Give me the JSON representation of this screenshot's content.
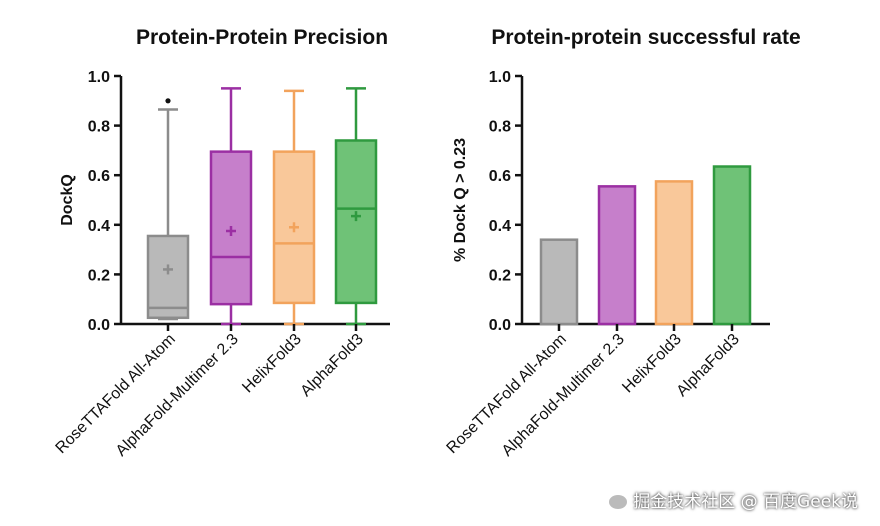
{
  "chart_data": [
    {
      "type": "box",
      "title": "Protein-Protein Precision",
      "ylabel": "DockQ",
      "ylim": [
        0,
        1.0
      ],
      "yticks": [
        "0.0",
        "0.2",
        "0.4",
        "0.6",
        "0.8",
        "1.0"
      ],
      "categories": [
        "RoseTTAFold All-Atom",
        "AlphaFold-Multimer 2.3",
        "HelixFold3",
        "AlphaFold3"
      ],
      "colors": [
        "#8c8c8c",
        "#9b2fa3",
        "#f2a35c",
        "#2f9a3f"
      ],
      "fills": [
        "#b9b9b9",
        "#c67fcb",
        "#f9c89a",
        "#6fc277"
      ],
      "boxes": [
        {
          "min": 0.02,
          "q1": 0.025,
          "median": 0.065,
          "q3": 0.355,
          "max": 0.865,
          "mean": 0.22,
          "outliers": [
            0.9
          ]
        },
        {
          "min": 0.0,
          "q1": 0.08,
          "median": 0.27,
          "q3": 0.695,
          "max": 0.95,
          "mean": 0.375,
          "outliers": []
        },
        {
          "min": 0.0,
          "q1": 0.085,
          "median": 0.325,
          "q3": 0.695,
          "max": 0.94,
          "mean": 0.39,
          "outliers": []
        },
        {
          "min": 0.0,
          "q1": 0.085,
          "median": 0.465,
          "q3": 0.74,
          "max": 0.95,
          "mean": 0.435,
          "outliers": []
        }
      ]
    },
    {
      "type": "bar",
      "title": "Protein-protein successful rate",
      "ylabel": "% Dock Q > 0.23",
      "ylim": [
        0,
        1.0
      ],
      "yticks": [
        "0.0",
        "0.2",
        "0.4",
        "0.6",
        "0.8",
        "1.0"
      ],
      "categories": [
        "RoseTTAFold All-Atom",
        "AlphaFold-Multimer 2.3",
        "HelixFold3",
        "AlphaFold3"
      ],
      "values": [
        0.34,
        0.555,
        0.575,
        0.635
      ],
      "colors": [
        "#8c8c8c",
        "#9b2fa3",
        "#f2a35c",
        "#2f9a3f"
      ],
      "fills": [
        "#b9b9b9",
        "#c67fcb",
        "#f9c89a",
        "#6fc277"
      ]
    }
  ],
  "watermark": "掘金技术社区 @ 百度Geek说"
}
